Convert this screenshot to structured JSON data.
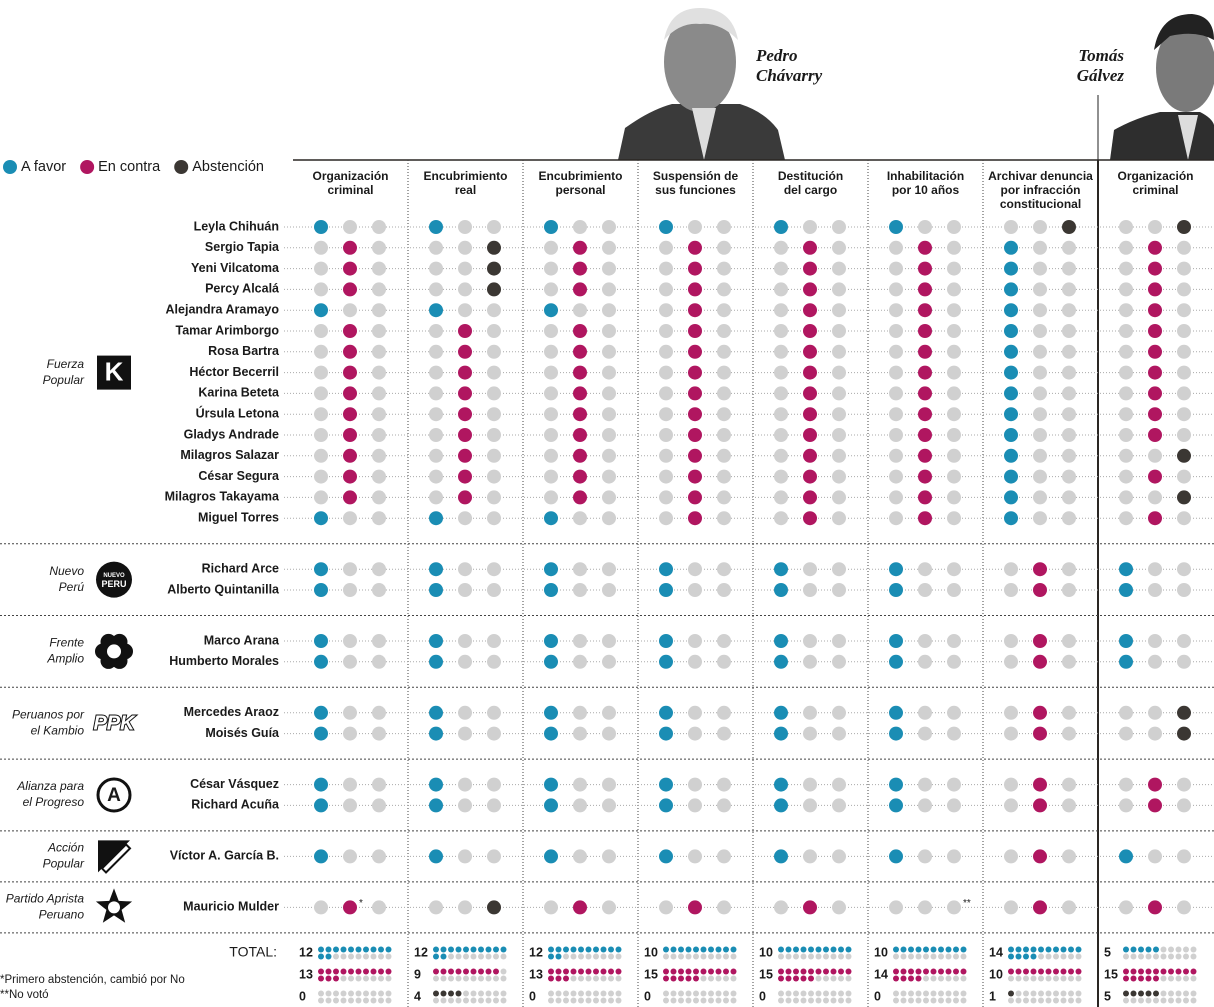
{
  "legend": [
    {
      "label": "A favor",
      "color": "#1a8db4"
    },
    {
      "label": "En contra",
      "color": "#b01660"
    },
    {
      "label": "Abstención",
      "color": "#3b3733"
    }
  ],
  "officials": [
    {
      "name_lines": [
        "Pedro",
        "Chávarry"
      ]
    },
    {
      "name_lines": [
        "Tomás",
        "Gálvez"
      ]
    }
  ],
  "columns": [
    {
      "lines": [
        "Organización",
        "criminal"
      ]
    },
    {
      "lines": [
        "Encubrimiento",
        "real"
      ]
    },
    {
      "lines": [
        "Encubrimiento",
        "personal"
      ]
    },
    {
      "lines": [
        "Suspensión de",
        "sus funciones"
      ]
    },
    {
      "lines": [
        "Destitución",
        "del cargo"
      ]
    },
    {
      "lines": [
        "Inhabilitación",
        "por 10 años"
      ]
    },
    {
      "lines": [
        "Archivar denuncia",
        "por infracción",
        "constitucional"
      ]
    },
    {
      "lines": [
        "Organización",
        "criminal"
      ]
    }
  ],
  "parties": [
    {
      "name_lines": [
        "Fuerza",
        "Popular"
      ],
      "logo": "K",
      "members": [
        {
          "name": "Leyla Chihuán",
          "votes": [
            0,
            0,
            0,
            0,
            0,
            0,
            2,
            2
          ]
        },
        {
          "name": "Sergio Tapia",
          "votes": [
            1,
            2,
            1,
            1,
            1,
            1,
            0,
            1
          ]
        },
        {
          "name": "Yeni Vilcatoma",
          "votes": [
            1,
            2,
            1,
            1,
            1,
            1,
            0,
            1
          ]
        },
        {
          "name": "Percy Alcalá",
          "votes": [
            1,
            2,
            1,
            1,
            1,
            1,
            0,
            1
          ]
        },
        {
          "name": "Alejandra Aramayo",
          "votes": [
            0,
            0,
            0,
            1,
            1,
            1,
            0,
            1
          ]
        },
        {
          "name": "Tamar Arimborgo",
          "votes": [
            1,
            1,
            1,
            1,
            1,
            1,
            0,
            1
          ]
        },
        {
          "name": "Rosa Bartra",
          "votes": [
            1,
            1,
            1,
            1,
            1,
            1,
            0,
            1
          ]
        },
        {
          "name": "Héctor Becerril",
          "votes": [
            1,
            1,
            1,
            1,
            1,
            1,
            0,
            1
          ]
        },
        {
          "name": "Karina Beteta",
          "votes": [
            1,
            1,
            1,
            1,
            1,
            1,
            0,
            1
          ]
        },
        {
          "name": "Úrsula Letona",
          "votes": [
            1,
            1,
            1,
            1,
            1,
            1,
            0,
            1
          ]
        },
        {
          "name": "Gladys Andrade",
          "votes": [
            1,
            1,
            1,
            1,
            1,
            1,
            0,
            1
          ]
        },
        {
          "name": "Milagros Salazar",
          "votes": [
            1,
            1,
            1,
            1,
            1,
            1,
            0,
            2
          ]
        },
        {
          "name": "César Segura",
          "votes": [
            1,
            1,
            1,
            1,
            1,
            1,
            0,
            1
          ]
        },
        {
          "name": "Milagros Takayama",
          "votes": [
            1,
            1,
            1,
            1,
            1,
            1,
            0,
            2
          ]
        },
        {
          "name": "Miguel Torres",
          "votes": [
            0,
            0,
            0,
            1,
            1,
            1,
            0,
            1
          ]
        }
      ]
    },
    {
      "name_lines": [
        "Nuevo",
        "Perú"
      ],
      "logo": [
        "NUEVO",
        "PERU"
      ],
      "members": [
        {
          "name": "Richard Arce",
          "votes": [
            0,
            0,
            0,
            0,
            0,
            0,
            1,
            0
          ]
        },
        {
          "name": "Alberto Quintanilla",
          "votes": [
            0,
            0,
            0,
            0,
            0,
            0,
            1,
            0
          ]
        }
      ]
    },
    {
      "name_lines": [
        "Frente",
        "Amplio"
      ],
      "members": [
        {
          "name": "Marco Arana",
          "votes": [
            0,
            0,
            0,
            0,
            0,
            0,
            1,
            0
          ]
        },
        {
          "name": "Humberto Morales",
          "votes": [
            0,
            0,
            0,
            0,
            0,
            0,
            1,
            0
          ]
        }
      ]
    },
    {
      "name_lines": [
        "Peruanos por",
        "el Kambio"
      ],
      "logo": "PPK",
      "members": [
        {
          "name": "Mercedes Araoz",
          "votes": [
            0,
            0,
            0,
            0,
            0,
            0,
            1,
            2
          ]
        },
        {
          "name": "Moisés Guía",
          "votes": [
            0,
            0,
            0,
            0,
            0,
            0,
            1,
            2
          ]
        }
      ]
    },
    {
      "name_lines": [
        "Alianza para",
        "el Progreso"
      ],
      "logo": "A",
      "members": [
        {
          "name": "César Vásquez",
          "votes": [
            0,
            0,
            0,
            0,
            0,
            0,
            1,
            1
          ]
        },
        {
          "name": "Richard Acuña",
          "votes": [
            0,
            0,
            0,
            0,
            0,
            0,
            1,
            1
          ]
        }
      ]
    },
    {
      "name_lines": [
        "Acción",
        "Popular"
      ],
      "members": [
        {
          "name": "Víctor A. García B.",
          "votes": [
            0,
            0,
            0,
            0,
            0,
            0,
            1,
            0
          ]
        }
      ]
    },
    {
      "name_lines": [
        "Partido Aprista",
        "Peruano"
      ],
      "members": [
        {
          "name": "Mauricio Mulder",
          "votes": [
            1,
            2,
            1,
            1,
            1,
            null,
            1,
            1
          ],
          "notes": {
            "0": "*",
            "5": "**"
          }
        }
      ]
    }
  ],
  "total_label": "TOTAL:",
  "totals": [
    [
      12,
      13,
      0
    ],
    [
      12,
      9,
      4
    ],
    [
      12,
      13,
      0
    ],
    [
      10,
      15,
      0
    ],
    [
      10,
      15,
      0
    ],
    [
      10,
      14,
      0
    ],
    [
      14,
      10,
      1
    ],
    [
      5,
      15,
      5
    ]
  ],
  "footnotes": [
    "*Primero abstención, cambió por No",
    "**No votó"
  ]
}
